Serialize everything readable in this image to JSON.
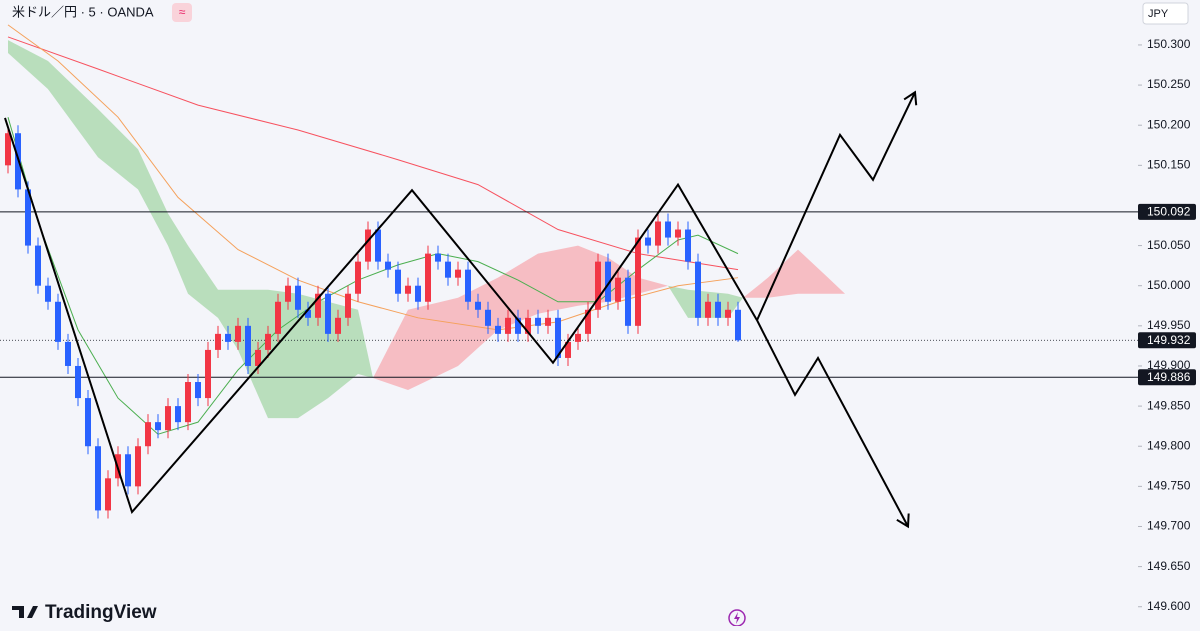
{
  "chart_data": {
    "type": "candlestick",
    "title": "米ドル／円 · 5 · OANDA",
    "currency": "JPY",
    "brand": "TradingView",
    "up_color": "#f23645",
    "down_color": "#2962ff",
    "xlim": [
      -0.8,
      113
    ],
    "ylim": [
      149.576,
      150.356
    ],
    "yticks": [
      {
        "value": 150.3,
        "label": "150.300"
      },
      {
        "value": 150.25,
        "label": "150.250"
      },
      {
        "value": 150.2,
        "label": "150.200"
      },
      {
        "value": 150.15,
        "label": "150.150"
      },
      {
        "value": 150.05,
        "label": "150.050"
      },
      {
        "value": 150.0,
        "label": "150.000"
      },
      {
        "value": 149.95,
        "label": "149.950"
      },
      {
        "value": 149.9,
        "label": "149.900"
      },
      {
        "value": 149.85,
        "label": "149.850"
      },
      {
        "value": 149.8,
        "label": "149.800"
      },
      {
        "value": 149.75,
        "label": "149.750"
      },
      {
        "value": 149.7,
        "label": "149.700"
      },
      {
        "value": 149.65,
        "label": "149.650"
      },
      {
        "value": 149.6,
        "label": "149.600"
      }
    ],
    "open": [
      150.15,
      150.19,
      150.12,
      150.05,
      150.0,
      149.98,
      149.93,
      149.9,
      149.86,
      149.8,
      149.72,
      149.76,
      149.79,
      149.75,
      149.8,
      149.83,
      149.82,
      149.85,
      149.83,
      149.88,
      149.86,
      149.92,
      149.94,
      149.93,
      149.95,
      149.9,
      149.92,
      149.94,
      149.98,
      150.0,
      149.97,
      149.96,
      149.99,
      149.94,
      149.96,
      149.99,
      150.03,
      150.07,
      150.03,
      150.02,
      149.99,
      150.0,
      149.98,
      150.04,
      150.03,
      150.01,
      150.02,
      149.98,
      149.97,
      149.95,
      149.94,
      149.96,
      149.94,
      149.96,
      149.95,
      149.96,
      149.91,
      149.93,
      149.94,
      149.97,
      150.03,
      149.98,
      150.01,
      149.95,
      150.06,
      150.05,
      150.08,
      150.06,
      150.07,
      150.03,
      149.96,
      149.98,
      149.96,
      149.97
    ],
    "high": [
      150.2,
      150.2,
      150.13,
      150.06,
      150.01,
      149.99,
      149.94,
      149.91,
      149.87,
      149.81,
      149.77,
      149.8,
      149.8,
      149.81,
      149.84,
      149.84,
      149.86,
      149.86,
      149.89,
      149.89,
      149.93,
      149.95,
      149.95,
      149.96,
      149.96,
      149.93,
      149.95,
      149.99,
      150.01,
      150.01,
      149.98,
      150.0,
      150.0,
      149.97,
      150.0,
      150.04,
      150.08,
      150.08,
      150.04,
      150.03,
      150.01,
      150.01,
      150.05,
      150.05,
      150.04,
      150.03,
      150.03,
      149.99,
      149.98,
      149.96,
      149.97,
      149.97,
      149.97,
      149.97,
      149.97,
      149.97,
      149.94,
      149.95,
      149.98,
      150.04,
      150.04,
      150.02,
      150.02,
      150.07,
      150.07,
      150.09,
      150.09,
      150.08,
      150.08,
      150.04,
      149.99,
      149.99,
      149.98,
      149.98
    ],
    "low": [
      150.14,
      150.11,
      150.04,
      149.99,
      149.97,
      149.92,
      149.89,
      149.85,
      149.79,
      149.71,
      149.71,
      149.75,
      149.74,
      149.74,
      149.79,
      149.81,
      149.81,
      149.82,
      149.82,
      149.85,
      149.85,
      149.91,
      149.92,
      149.92,
      149.89,
      149.89,
      149.91,
      149.93,
      149.97,
      149.96,
      149.95,
      149.95,
      149.93,
      149.93,
      149.95,
      149.98,
      150.02,
      150.02,
      150.01,
      149.98,
      149.98,
      149.97,
      149.97,
      150.02,
      150.0,
      150.0,
      149.97,
      149.96,
      149.94,
      149.93,
      149.93,
      149.93,
      149.93,
      149.94,
      149.94,
      149.9,
      149.9,
      149.92,
      149.93,
      149.96,
      149.97,
      149.97,
      149.94,
      149.94,
      150.04,
      150.04,
      150.05,
      150.05,
      150.02,
      149.95,
      149.95,
      149.95,
      149.95,
      149.93
    ],
    "close": [
      150.19,
      150.12,
      150.05,
      150.0,
      149.98,
      149.93,
      149.9,
      149.86,
      149.8,
      149.72,
      149.76,
      149.79,
      149.75,
      149.8,
      149.83,
      149.82,
      149.85,
      149.83,
      149.88,
      149.86,
      149.92,
      149.94,
      149.93,
      149.95,
      149.9,
      149.92,
      149.94,
      149.98,
      150.0,
      149.97,
      149.96,
      149.99,
      149.94,
      149.96,
      149.99,
      150.03,
      150.07,
      150.03,
      150.02,
      149.99,
      150.0,
      149.98,
      150.04,
      150.03,
      150.01,
      150.02,
      149.98,
      149.97,
      149.95,
      149.94,
      149.96,
      149.94,
      149.96,
      149.95,
      149.96,
      149.91,
      149.93,
      149.94,
      149.97,
      150.03,
      149.98,
      150.01,
      149.95,
      150.06,
      150.05,
      150.08,
      150.06,
      150.07,
      150.03,
      149.96,
      149.98,
      149.96,
      149.97,
      149.932
    ],
    "moving_averages": [
      {
        "color": "#f7525f",
        "x": [
          0,
          9,
          19,
          29,
          39,
          47,
          55,
          63,
          73
        ],
        "values": [
          150.31,
          150.27,
          150.225,
          150.194,
          150.157,
          150.126,
          150.07,
          150.04,
          150.02
        ]
      },
      {
        "color": "#f5a15b",
        "x": [
          0,
          5,
          11,
          17,
          23,
          29,
          35,
          41,
          49,
          55,
          61,
          67,
          73
        ],
        "values": [
          150.325,
          150.28,
          150.21,
          150.11,
          150.045,
          150.007,
          149.98,
          149.96,
          149.945,
          149.955,
          149.98,
          150.0,
          150.01
        ]
      },
      {
        "color": "#4caf50",
        "x": [
          0,
          3,
          7,
          11,
          15,
          19,
          23,
          27,
          31,
          35,
          39,
          43,
          47,
          51,
          55,
          59,
          63,
          67,
          69,
          73
        ],
        "values": [
          150.21,
          150.08,
          149.945,
          149.86,
          149.815,
          149.83,
          149.895,
          149.945,
          149.98,
          150.007,
          150.026,
          150.04,
          150.03,
          150.007,
          149.98,
          149.98,
          150.02,
          150.057,
          150.063,
          150.04
        ]
      }
    ],
    "cloud": {
      "up_color": "#a5d6a7",
      "down_color": "#f7a9b0",
      "x": [
        0,
        4,
        9,
        13,
        16,
        18,
        21,
        23,
        26,
        29,
        32,
        35,
        36.5,
        40,
        45,
        49,
        53,
        57,
        60,
        63,
        66,
        68,
        72,
        73.5,
        76,
        79,
        82,
        83.7
      ],
      "span_a": [
        150.306,
        150.28,
        150.22,
        150.17,
        150.09,
        150.05,
        149.995,
        149.995,
        149.995,
        149.99,
        149.98,
        149.97,
        149.885,
        149.87,
        149.9,
        149.945,
        149.965,
        149.975,
        149.98,
        149.99,
        150.0,
        149.995,
        149.99,
        149.985,
        149.985,
        149.99,
        149.99,
        149.99
      ],
      "span_b": [
        150.29,
        150.245,
        150.16,
        150.12,
        150.05,
        149.99,
        149.96,
        149.92,
        149.835,
        149.835,
        149.86,
        149.89,
        149.885,
        149.97,
        149.985,
        150.01,
        150.04,
        150.05,
        150.035,
        150.01,
        150.0,
        149.96,
        149.96,
        149.985,
        150.01,
        150.045,
        150.01,
        149.99
      ]
    },
    "price_lines": [
      {
        "value": 150.092,
        "style": "solid"
      },
      {
        "value": 149.932,
        "style": "dotted"
      },
      {
        "value": 149.886,
        "style": "solid"
      }
    ],
    "drawings": [
      {
        "x": [
          -0.3,
          12.4,
          40.4,
          54.5,
          67,
          74.9
        ],
        "values": [
          150.209,
          149.718,
          150.119,
          149.904,
          150.126,
          149.957
        ]
      },
      {
        "x": [
          74.9,
          83.2,
          86.5,
          90.7
        ],
        "values": [
          149.957,
          150.188,
          150.132,
          150.241
        ]
      },
      {
        "x": [
          74.9,
          78.7,
          81,
          90
        ],
        "values": [
          149.957,
          149.864,
          149.91,
          149.7
        ]
      }
    ]
  }
}
